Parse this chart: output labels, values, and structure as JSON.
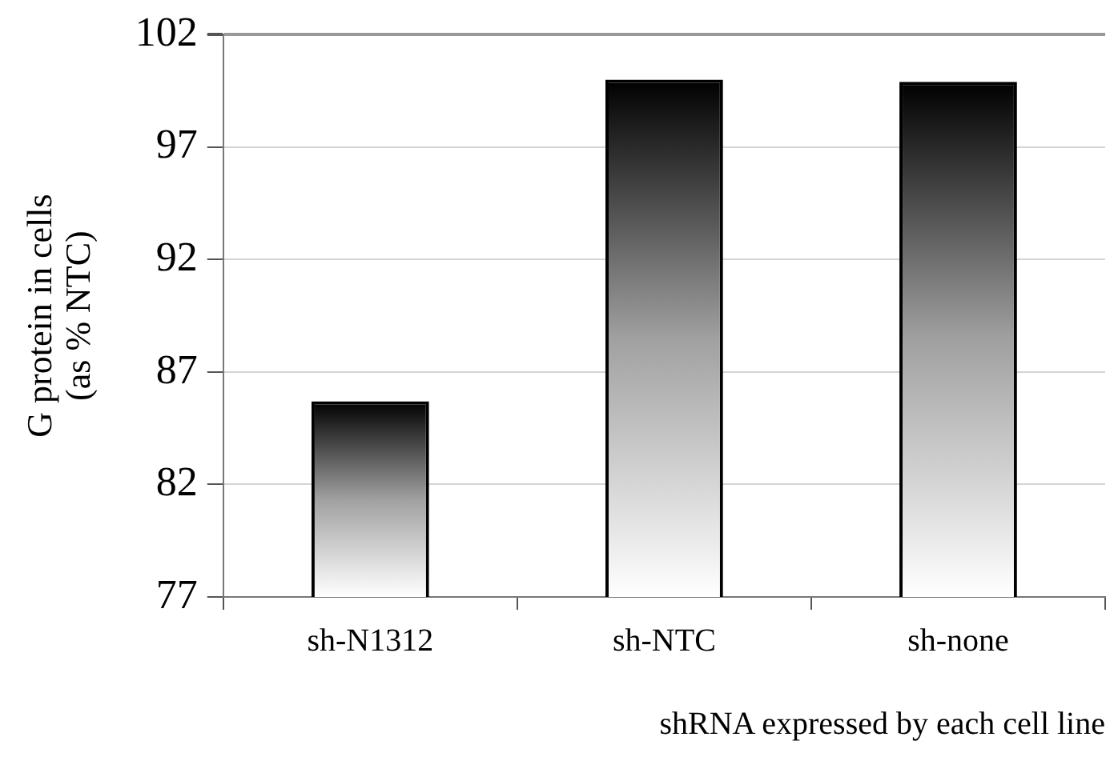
{
  "chart_data": {
    "type": "bar",
    "xlabel": "shRNA expressed by each cell line",
    "ylabel": "G protein in cells\n(as % NTC)",
    "categories": [
      "sh-N1312",
      "sh-NTC",
      "sh-none"
    ],
    "values": [
      85.7,
      100.0,
      99.9
    ],
    "color": "#000000",
    "ylim": [
      77,
      102
    ],
    "yticks": [
      77,
      82,
      87,
      92,
      97,
      102
    ],
    "grid": "y",
    "legend": false
  }
}
